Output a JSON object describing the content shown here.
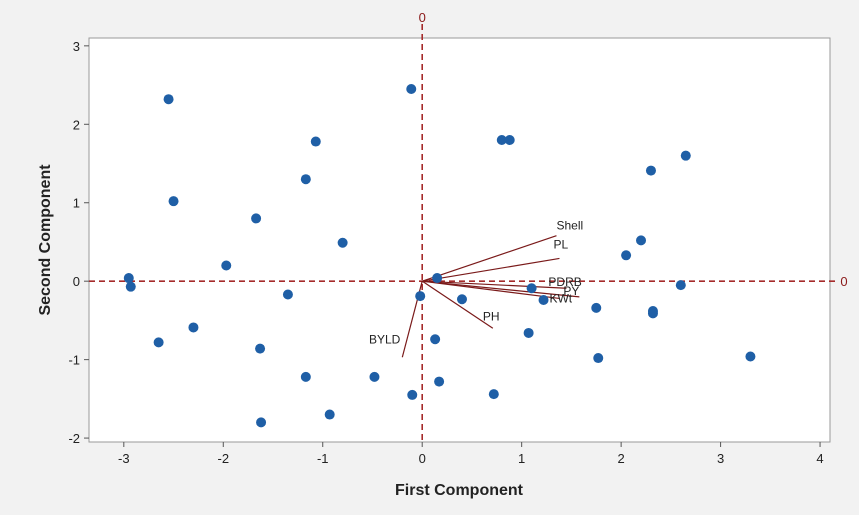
{
  "chart_data": {
    "type": "scatter",
    "subtype": "biplot",
    "title": "",
    "xlabel": "First Component",
    "ylabel": "Second Component",
    "xlim": [
      -3.35,
      4.1
    ],
    "ylim": [
      -2.05,
      3.1
    ],
    "xticks": [
      "-3",
      "-2",
      "-1",
      "0",
      "1",
      "2",
      "3",
      "4"
    ],
    "yticks": [
      "-2",
      "-1",
      "0",
      "1",
      "2",
      "3"
    ],
    "grid": false,
    "reference_lines": {
      "x": 0,
      "y": 0,
      "x_label": "0",
      "y_label": "0",
      "color": "#a52a2a",
      "style": "dashed"
    },
    "colors": {
      "points": "#1f5fa6",
      "vectors": "#7a1a1a",
      "plot_bg": "#ffffff",
      "page_bg": "#f2f2f2"
    },
    "points": [
      {
        "x": -2.55,
        "y": 2.32
      },
      {
        "x": -2.5,
        "y": 1.02
      },
      {
        "x": -2.95,
        "y": 0.04
      },
      {
        "x": -2.93,
        "y": -0.07
      },
      {
        "x": -2.65,
        "y": -0.78
      },
      {
        "x": -2.3,
        "y": -0.59
      },
      {
        "x": -1.97,
        "y": 0.2
      },
      {
        "x": -1.67,
        "y": 0.8
      },
      {
        "x": -1.63,
        "y": -0.86
      },
      {
        "x": -1.62,
        "y": -1.8
      },
      {
        "x": -1.35,
        "y": -0.17
      },
      {
        "x": -1.17,
        "y": 1.3
      },
      {
        "x": -1.17,
        "y": -1.22
      },
      {
        "x": -1.07,
        "y": 1.78
      },
      {
        "x": -0.93,
        "y": -1.7
      },
      {
        "x": -0.8,
        "y": 0.49
      },
      {
        "x": -0.48,
        "y": -1.22
      },
      {
        "x": -0.11,
        "y": 2.45
      },
      {
        "x": -0.1,
        "y": -1.45
      },
      {
        "x": -0.02,
        "y": -0.19
      },
      {
        "x": 0.13,
        "y": -0.74
      },
      {
        "x": 0.15,
        "y": 0.04
      },
      {
        "x": 0.17,
        "y": -1.28
      },
      {
        "x": 0.4,
        "y": -0.23
      },
      {
        "x": 0.72,
        "y": -1.44
      },
      {
        "x": 0.8,
        "y": 1.8
      },
      {
        "x": 0.88,
        "y": 1.8
      },
      {
        "x": 1.07,
        "y": -0.66
      },
      {
        "x": 1.1,
        "y": -0.09
      },
      {
        "x": 1.22,
        "y": -0.24
      },
      {
        "x": 1.75,
        "y": -0.34
      },
      {
        "x": 1.77,
        "y": -0.98
      },
      {
        "x": 2.05,
        "y": 0.33
      },
      {
        "x": 2.2,
        "y": 0.52
      },
      {
        "x": 2.3,
        "y": 1.41
      },
      {
        "x": 2.32,
        "y": -0.38
      },
      {
        "x": 2.32,
        "y": -0.41
      },
      {
        "x": 2.6,
        "y": -0.05
      },
      {
        "x": 2.65,
        "y": 1.6
      },
      {
        "x": 3.3,
        "y": -0.96
      }
    ],
    "loadings": [
      {
        "name": "Shell",
        "x": 1.35,
        "y": 0.58
      },
      {
        "name": "PL",
        "x": 1.38,
        "y": 0.29
      },
      {
        "name": "PDRB",
        "x": 1.45,
        "y": -0.09
      },
      {
        "name": "PY",
        "x": 1.58,
        "y": -0.2
      },
      {
        "name": "KWt",
        "x": 1.38,
        "y": -0.22
      },
      {
        "name": "PH",
        "x": 0.71,
        "y": -0.6
      },
      {
        "name": "BYLD",
        "x": -0.2,
        "y": -0.97
      }
    ]
  }
}
